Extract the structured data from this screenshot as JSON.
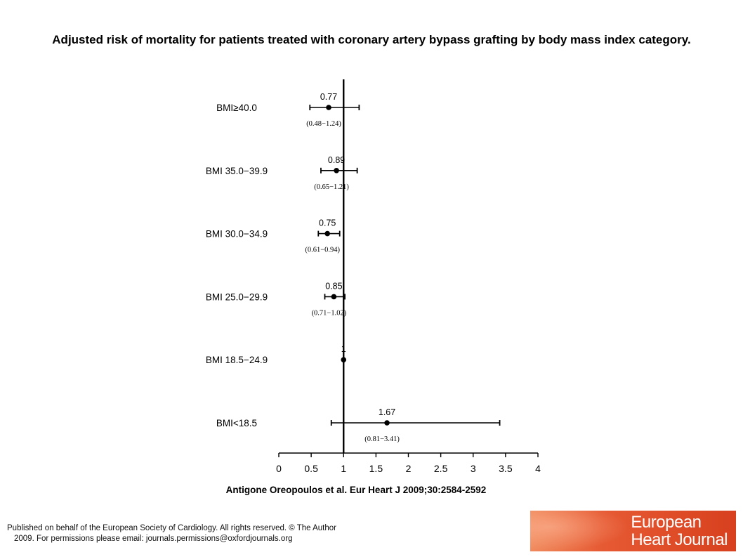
{
  "slide": {
    "title": "Adjusted risk of mortality for patients treated with coronary artery bypass grafting by body mass index category.",
    "citation": "Antigone Oreopoulos et al. Eur Heart J 2009;30:2584-2592",
    "footer_line1": "Published on behalf of the European Society of Cardiology. All rights reserved. © The Author",
    "footer_line2": "2009. For permissions please email: journals.permissions@oxfordjournals.org",
    "logo_line1": "European",
    "logo_line2": "Heart Journal",
    "logo_color": "#e65a33"
  },
  "chart_data": {
    "type": "scatter",
    "subtype": "forest-plot",
    "title": "",
    "xlabel": "",
    "ylabel": "",
    "xlim": [
      0,
      4
    ],
    "x_ticks": [
      "0",
      "0.5",
      "1",
      "1.5",
      "2",
      "2.5",
      "3",
      "3.5",
      "4"
    ],
    "reference_line": 1,
    "rows": [
      {
        "label": "BMI≥40.0",
        "value": 0.77,
        "value_label": "0.77",
        "lower": 0.48,
        "upper": 1.24,
        "ci_label": "(0.48−1.24)"
      },
      {
        "label": "BMI 35.0−39.9",
        "value": 0.89,
        "value_label": "0.89",
        "lower": 0.65,
        "upper": 1.21,
        "ci_label": "(0.65−1.21)"
      },
      {
        "label": "BMI 30.0−34.9",
        "value": 0.75,
        "value_label": "0.75",
        "lower": 0.61,
        "upper": 0.94,
        "ci_label": "(0.61−0.94)"
      },
      {
        "label": "BMI 25.0−29.9",
        "value": 0.85,
        "value_label": "0.85",
        "lower": 0.71,
        "upper": 1.02,
        "ci_label": "(0.71−1.02)"
      },
      {
        "label": "BMI 18.5−24.9",
        "value": 1,
        "value_label": "1",
        "lower": null,
        "upper": null,
        "ci_label": ""
      },
      {
        "label": "BMI<18.5",
        "value": 1.67,
        "value_label": "1.67",
        "lower": 0.81,
        "upper": 3.41,
        "ci_label": "(0.81−3.41)"
      }
    ],
    "grid": false,
    "legend": "none"
  }
}
